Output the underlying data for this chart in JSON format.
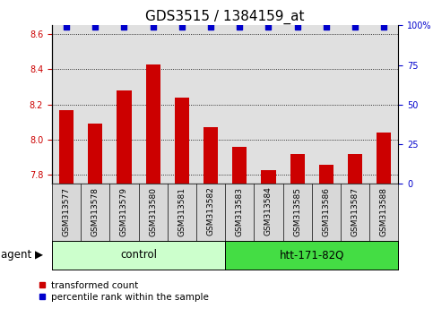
{
  "title": "GDS3515 / 1384159_at",
  "samples": [
    "GSM313577",
    "GSM313578",
    "GSM313579",
    "GSM313580",
    "GSM313581",
    "GSM313582",
    "GSM313583",
    "GSM313584",
    "GSM313585",
    "GSM313586",
    "GSM313587",
    "GSM313588"
  ],
  "bar_values": [
    8.17,
    8.09,
    8.28,
    8.43,
    8.24,
    8.07,
    7.96,
    7.83,
    7.92,
    7.86,
    7.92,
    8.04
  ],
  "percentile_values": [
    99,
    99,
    99,
    99,
    99,
    99,
    99,
    99,
    99,
    99,
    99,
    99
  ],
  "bar_color": "#cc0000",
  "percentile_color": "#0000cc",
  "ylim_left": [
    7.75,
    8.65
  ],
  "ylim_right": [
    0,
    100
  ],
  "yticks_left": [
    7.8,
    8.0,
    8.2,
    8.4,
    8.6
  ],
  "yticks_right": [
    0,
    25,
    50,
    75,
    100
  ],
  "ytick_labels_right": [
    "0",
    "25",
    "50",
    "75",
    "100%"
  ],
  "grid_y": [
    7.8,
    8.0,
    8.2,
    8.4,
    8.6
  ],
  "control_color": "#ccffcc",
  "htt_color": "#44dd44",
  "control_label": "control",
  "htt_label": "htt-171-82Q",
  "agent_label": "agent",
  "legend_red_label": "transformed count",
  "legend_blue_label": "percentile rank within the sample",
  "bar_color_legend": "#cc0000",
  "percentile_color_legend": "#0000cc",
  "bar_width": 0.5,
  "plot_bg_color": "#e0e0e0",
  "title_fontsize": 11,
  "tick_fontsize": 7,
  "label_fontsize": 8.5,
  "legend_fontsize": 7.5
}
